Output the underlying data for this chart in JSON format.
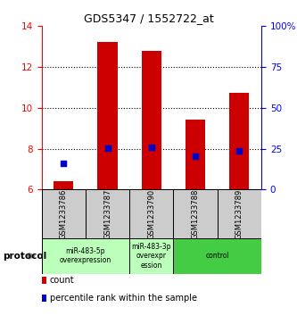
{
  "title": "GDS5347 / 1552722_at",
  "samples": [
    "GSM1233786",
    "GSM1233787",
    "GSM1233790",
    "GSM1233788",
    "GSM1233789"
  ],
  "bar_values": [
    6.42,
    13.22,
    12.78,
    9.42,
    10.72
  ],
  "bar_baseline": 6.0,
  "percentile_values": [
    7.28,
    8.02,
    8.05,
    7.62,
    7.88
  ],
  "left_ylim": [
    6,
    14
  ],
  "right_ylim": [
    0,
    100
  ],
  "left_yticks": [
    6,
    8,
    10,
    12,
    14
  ],
  "right_yticks": [
    0,
    25,
    50,
    75,
    100
  ],
  "right_yticklabels": [
    "0",
    "25",
    "50",
    "75",
    "100%"
  ],
  "bar_color": "#cc0000",
  "percentile_color": "#0000cc",
  "group_configs": [
    {
      "start": 0,
      "end": 2,
      "label": "miR-483-5p\noverexpression",
      "color": "#bbffbb"
    },
    {
      "start": 2,
      "end": 3,
      "label": "miR-483-3p\noverexpr\nession",
      "color": "#bbffbb"
    },
    {
      "start": 3,
      "end": 5,
      "label": "control",
      "color": "#44cc44"
    }
  ],
  "protocol_label": "protocol",
  "legend_count_label": "count",
  "legend_percentile_label": "percentile rank within the sample",
  "bg_color": "#ffffff",
  "sample_box_color": "#cccccc"
}
